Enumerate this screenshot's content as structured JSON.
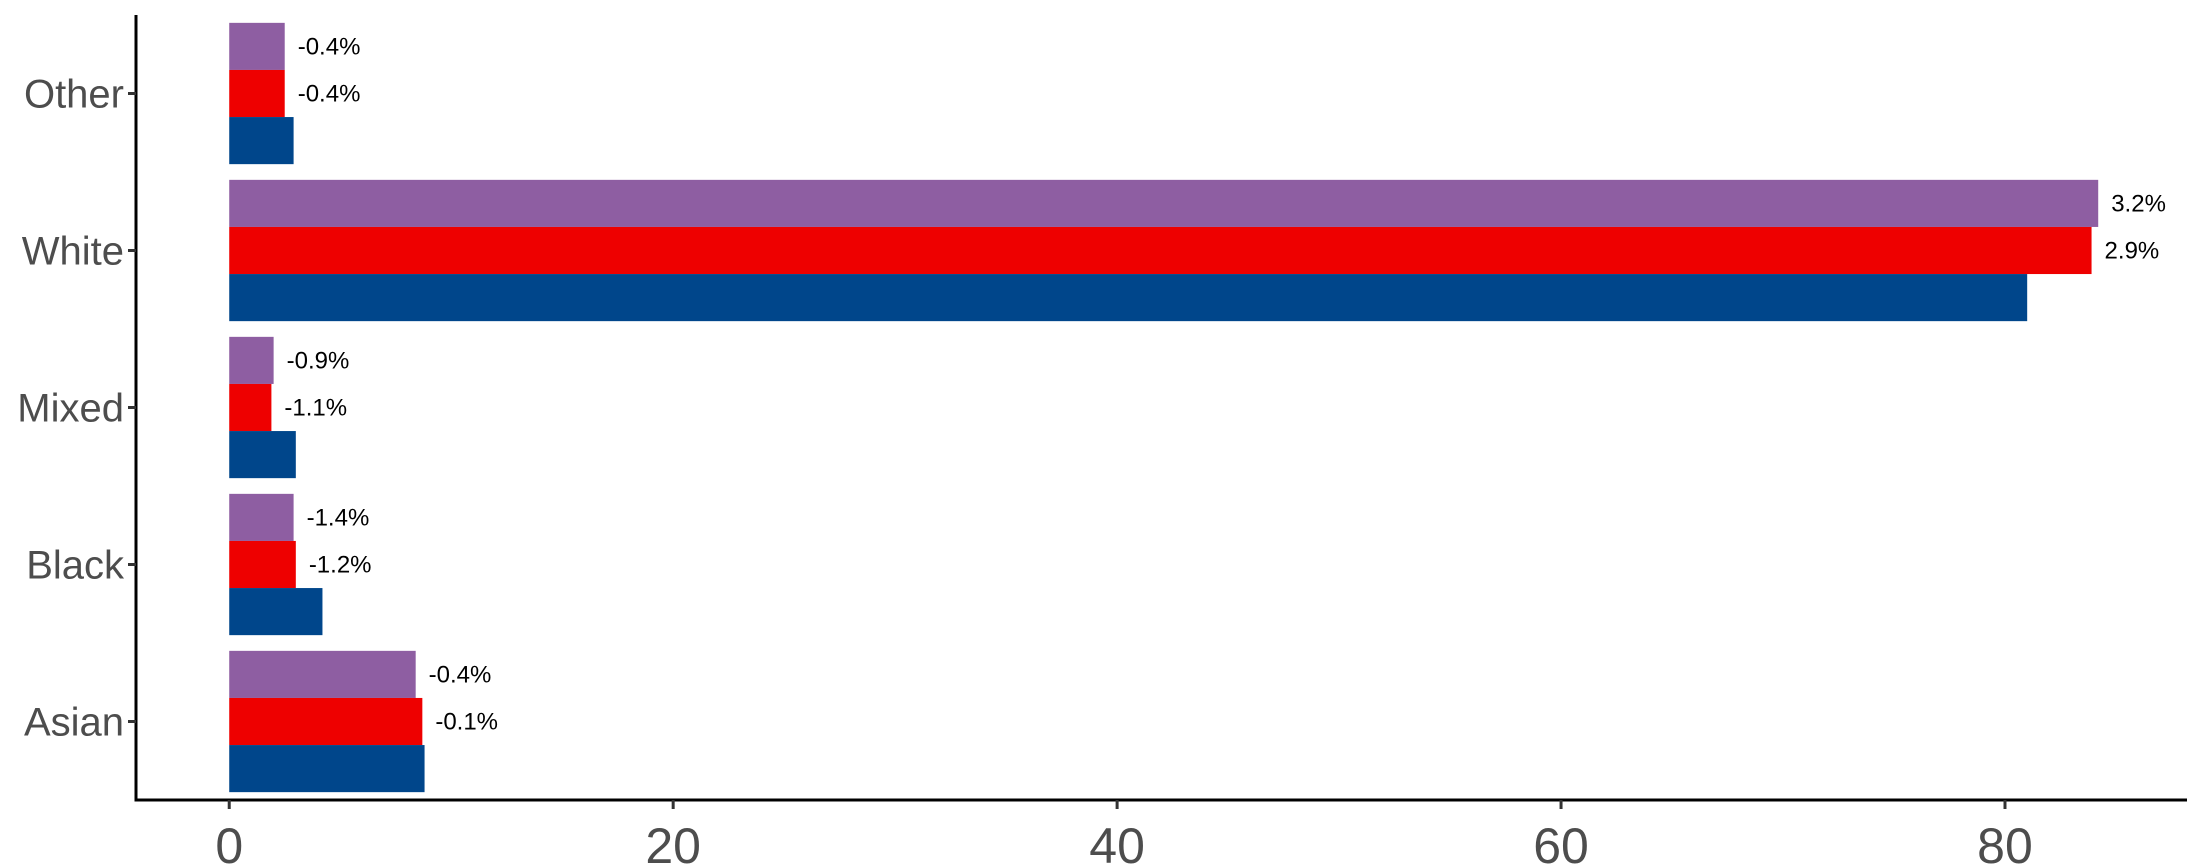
{
  "chart_data": {
    "type": "bar",
    "orientation": "horizontal",
    "categories": [
      "Other",
      "White",
      "Mixed",
      "Black",
      "Asian"
    ],
    "series": [
      {
        "color": "#8e5ea2",
        "values": [
          2.5,
          84.2,
          2.0,
          2.9,
          8.4
        ],
        "labels": [
          "-0.4%",
          "3.2%",
          "-0.9%",
          "-1.4%",
          "-0.4%"
        ]
      },
      {
        "color": "#ee0000",
        "values": [
          2.5,
          83.9,
          1.9,
          3.0,
          8.7
        ],
        "labels": [
          "-0.4%",
          "2.9%",
          "-1.1%",
          "-1.2%",
          "-0.1%"
        ]
      },
      {
        "color": "#00468b",
        "values": [
          2.9,
          81.0,
          3.0,
          4.2,
          8.8
        ],
        "labels": [
          "",
          "",
          "",
          "",
          ""
        ]
      }
    ],
    "xticks": [
      0,
      20,
      40,
      60,
      80
    ],
    "xlim": [
      -4.2,
      88.2
    ],
    "title": "",
    "xlabel": "",
    "ylabel": "",
    "grid": false,
    "legend": "none"
  }
}
